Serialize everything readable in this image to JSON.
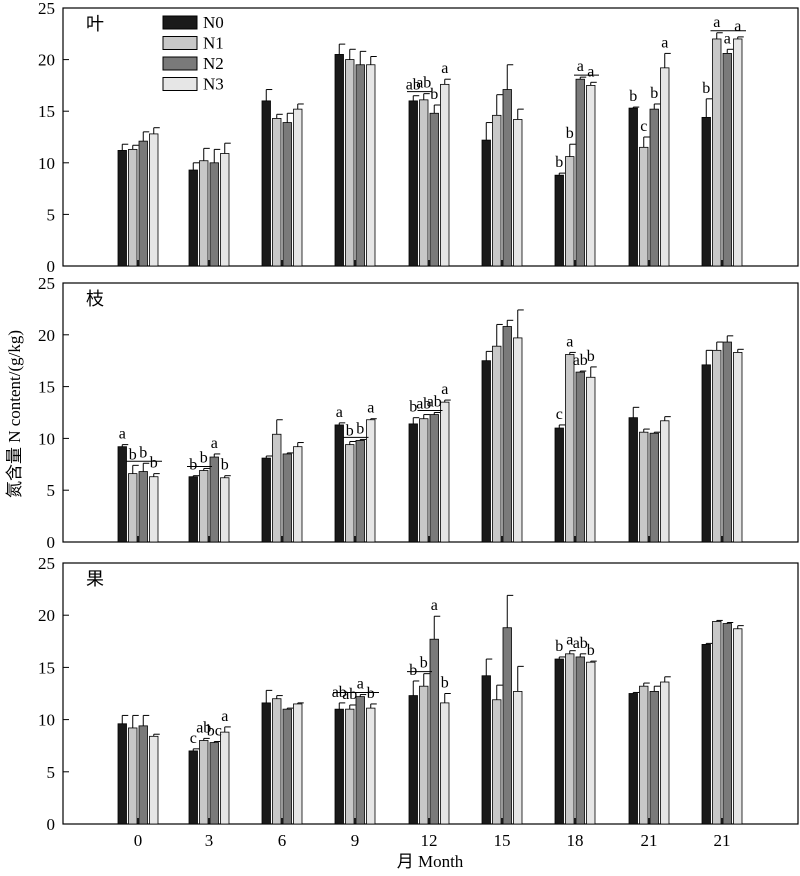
{
  "figure": {
    "ylabel": "氮含量 N content/(g/kg)",
    "xlabel": "月 Month"
  },
  "legend": {
    "placement": "top-left of first panel",
    "entries": [
      {
        "label": "N0",
        "color": "#1a1a1a"
      },
      {
        "label": "N1",
        "color": "#c8c8c8"
      },
      {
        "label": "N2",
        "color": "#7a7a7a"
      },
      {
        "label": "N3",
        "color": "#e6e6e6"
      }
    ]
  },
  "chart_data": [
    {
      "type": "bar",
      "title": "叶",
      "categories": [
        "0",
        "3",
        "6",
        "9",
        "12",
        "15",
        "18",
        "21",
        "21"
      ],
      "ylim": [
        0,
        25
      ],
      "yticks": [
        0,
        5,
        10,
        15,
        20,
        25
      ],
      "series": [
        {
          "name": "N0",
          "values": [
            11.2,
            9.3,
            16.0,
            20.5,
            16.0,
            12.2,
            8.8,
            15.3,
            14.4
          ],
          "errors": [
            0.6,
            0.7,
            1.1,
            1.0,
            0.5,
            1.7,
            0.2,
            0.1,
            1.8
          ]
        },
        {
          "name": "N1",
          "values": [
            11.3,
            10.2,
            14.3,
            20.0,
            16.1,
            14.6,
            10.6,
            11.5,
            22.0
          ],
          "errors": [
            0.4,
            1.2,
            0.4,
            1.0,
            0.6,
            2.0,
            1.2,
            1.0,
            0.6
          ]
        },
        {
          "name": "N2",
          "values": [
            12.1,
            10.0,
            13.9,
            19.5,
            14.8,
            17.1,
            18.1,
            15.2,
            20.6
          ],
          "errors": [
            0.9,
            1.3,
            0.9,
            1.3,
            0.8,
            2.4,
            0.2,
            0.5,
            0.4
          ]
        },
        {
          "name": "N3",
          "values": [
            12.8,
            10.9,
            15.2,
            19.5,
            17.6,
            14.2,
            17.5,
            19.2,
            22.0
          ],
          "errors": [
            0.6,
            1.0,
            0.5,
            0.8,
            0.5,
            1.0,
            0.3,
            1.4,
            0.2
          ]
        }
      ],
      "letters": [
        {
          "category": 4,
          "series": 0,
          "text": "ab"
        },
        {
          "category": 4,
          "series": 1,
          "text": "ab"
        },
        {
          "category": 4,
          "series": 2,
          "text": "b"
        },
        {
          "category": 4,
          "series": 3,
          "text": "a"
        },
        {
          "category": 6,
          "series": 0,
          "text": "b"
        },
        {
          "category": 6,
          "series": 1,
          "text": "b"
        },
        {
          "category": 6,
          "series": 2,
          "text": "a"
        },
        {
          "category": 6,
          "series": 3,
          "text": "a"
        },
        {
          "category": 7,
          "series": 0,
          "text": "b"
        },
        {
          "category": 7,
          "series": 1,
          "text": "c"
        },
        {
          "category": 7,
          "series": 2,
          "text": "b"
        },
        {
          "category": 7,
          "series": 3,
          "text": "a"
        },
        {
          "category": 8,
          "series": 0,
          "text": "b"
        },
        {
          "category": 8,
          "series": 1,
          "text": "a"
        },
        {
          "category": 8,
          "series": 2,
          "text": "a"
        },
        {
          "category": 8,
          "series": 3,
          "text": "a"
        }
      ],
      "brackets": [
        {
          "category": 4,
          "from": 0,
          "to": 1
        },
        {
          "category": 6,
          "from": 2,
          "to": 3
        },
        {
          "category": 8,
          "from": 1,
          "to": 3
        }
      ]
    },
    {
      "type": "bar",
      "title": "枝",
      "categories": [
        "0",
        "3",
        "6",
        "9",
        "12",
        "15",
        "18",
        "21",
        "21"
      ],
      "ylim": [
        0,
        25
      ],
      "yticks": [
        0,
        5,
        10,
        15,
        20,
        25
      ],
      "series": [
        {
          "name": "N0",
          "values": [
            9.2,
            6.3,
            8.1,
            11.3,
            11.4,
            17.5,
            11.0,
            12.0,
            17.1
          ],
          "errors": [
            0.2,
            0.1,
            0.2,
            0.2,
            0.6,
            0.9,
            0.3,
            1.0,
            1.4
          ]
        },
        {
          "name": "N1",
          "values": [
            6.6,
            6.9,
            10.4,
            9.4,
            11.9,
            18.9,
            18.1,
            10.6,
            18.5
          ],
          "errors": [
            0.8,
            0.2,
            1.4,
            0.3,
            0.4,
            2.1,
            0.2,
            0.3,
            0.8
          ]
        },
        {
          "name": "N2",
          "values": [
            6.8,
            8.2,
            8.5,
            9.8,
            12.3,
            20.8,
            16.4,
            10.5,
            19.3
          ],
          "errors": [
            0.8,
            0.3,
            0.1,
            0.1,
            0.2,
            0.6,
            0.1,
            0.1,
            0.6
          ]
        },
        {
          "name": "N3",
          "values": [
            6.3,
            6.2,
            9.2,
            11.8,
            13.5,
            19.7,
            15.9,
            11.7,
            18.3
          ],
          "errors": [
            0.3,
            0.2,
            0.4,
            0.1,
            0.2,
            2.7,
            1.0,
            0.4,
            0.3
          ]
        }
      ],
      "letters": [
        {
          "category": 0,
          "series": 0,
          "text": "a"
        },
        {
          "category": 0,
          "series": 1,
          "text": "b"
        },
        {
          "category": 0,
          "series": 2,
          "text": "b"
        },
        {
          "category": 0,
          "series": 3,
          "text": "b"
        },
        {
          "category": 1,
          "series": 0,
          "text": "b"
        },
        {
          "category": 1,
          "series": 1,
          "text": "b"
        },
        {
          "category": 1,
          "series": 2,
          "text": "a"
        },
        {
          "category": 1,
          "series": 3,
          "text": "b"
        },
        {
          "category": 3,
          "series": 0,
          "text": "a"
        },
        {
          "category": 3,
          "series": 1,
          "text": "b"
        },
        {
          "category": 3,
          "series": 2,
          "text": "b"
        },
        {
          "category": 3,
          "series": 3,
          "text": "a"
        },
        {
          "category": 4,
          "series": 0,
          "text": "b"
        },
        {
          "category": 4,
          "series": 1,
          "text": "ab"
        },
        {
          "category": 4,
          "series": 2,
          "text": "ab"
        },
        {
          "category": 4,
          "series": 3,
          "text": "a"
        },
        {
          "category": 6,
          "series": 0,
          "text": "c"
        },
        {
          "category": 6,
          "series": 1,
          "text": "a"
        },
        {
          "category": 6,
          "series": 2,
          "text": "ab"
        },
        {
          "category": 6,
          "series": 3,
          "text": "b"
        }
      ],
      "brackets": [
        {
          "category": 0,
          "from": 1,
          "to": 3
        },
        {
          "category": 1,
          "from": 0,
          "to": 1
        },
        {
          "category": 3,
          "from": 1,
          "to": 2
        },
        {
          "category": 4,
          "from": 1,
          "to": 2
        }
      ]
    },
    {
      "type": "bar",
      "title": "果",
      "categories": [
        "0",
        "3",
        "6",
        "9",
        "12",
        "15",
        "18",
        "21",
        "21"
      ],
      "ylim": [
        0,
        25
      ],
      "yticks": [
        0,
        5,
        10,
        15,
        20,
        25
      ],
      "series": [
        {
          "name": "N0",
          "values": [
            9.6,
            7.0,
            11.6,
            11.0,
            12.3,
            14.2,
            15.8,
            12.5,
            17.2
          ],
          "errors": [
            0.8,
            0.2,
            1.2,
            0.6,
            1.4,
            1.6,
            0.2,
            0.1,
            0.1
          ]
        },
        {
          "name": "N1",
          "values": [
            9.2,
            8.0,
            12.0,
            11.0,
            13.2,
            11.9,
            16.3,
            13.2,
            19.4
          ],
          "errors": [
            1.2,
            0.2,
            0.3,
            0.4,
            1.2,
            1.4,
            0.3,
            0.3,
            0.1
          ]
        },
        {
          "name": "N2",
          "values": [
            9.4,
            7.8,
            11.0,
            12.2,
            17.7,
            18.8,
            16.0,
            12.7,
            19.2
          ],
          "errors": [
            1.0,
            0.1,
            0.1,
            0.2,
            2.2,
            3.1,
            0.3,
            0.5,
            0.1
          ]
        },
        {
          "name": "N3",
          "values": [
            8.4,
            8.8,
            11.5,
            11.1,
            11.6,
            12.7,
            15.5,
            13.6,
            18.7
          ],
          "errors": [
            0.2,
            0.5,
            0.1,
            0.4,
            0.9,
            2.4,
            0.1,
            0.5,
            0.3
          ]
        }
      ],
      "letters": [
        {
          "category": 1,
          "series": 0,
          "text": "c"
        },
        {
          "category": 1,
          "series": 1,
          "text": "ab"
        },
        {
          "category": 1,
          "series": 2,
          "text": "bc"
        },
        {
          "category": 1,
          "series": 3,
          "text": "a"
        },
        {
          "category": 3,
          "series": 0,
          "text": "ab"
        },
        {
          "category": 3,
          "series": 1,
          "text": "ab"
        },
        {
          "category": 3,
          "series": 2,
          "text": "a"
        },
        {
          "category": 3,
          "series": 3,
          "text": "b"
        },
        {
          "category": 4,
          "series": 0,
          "text": "b"
        },
        {
          "category": 4,
          "series": 1,
          "text": "b"
        },
        {
          "category": 4,
          "series": 2,
          "text": "a"
        },
        {
          "category": 4,
          "series": 3,
          "text": "b"
        },
        {
          "category": 6,
          "series": 0,
          "text": "b"
        },
        {
          "category": 6,
          "series": 1,
          "text": "a"
        },
        {
          "category": 6,
          "series": 2,
          "text": "ab"
        },
        {
          "category": 6,
          "series": 3,
          "text": "b"
        }
      ],
      "brackets": [
        {
          "category": 3,
          "from": 0,
          "to": 3
        },
        {
          "category": 4,
          "from": 0,
          "to": 1
        }
      ]
    }
  ]
}
